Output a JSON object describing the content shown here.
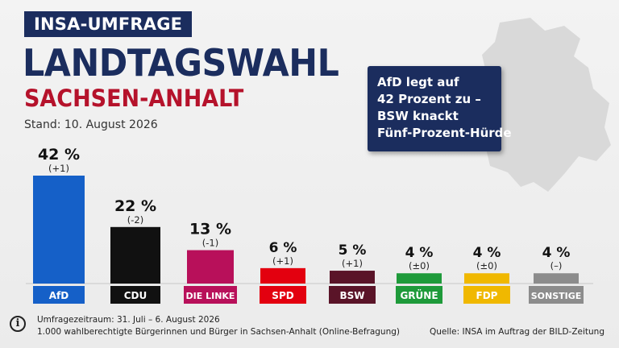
{
  "header": {
    "tag": "INSA-UMFRAGE",
    "title": "LANDTAGSWAHL",
    "subtitle": "SACHSEN-ANHALT",
    "stand": "Stand: 10. August 2026"
  },
  "callout": {
    "lines": [
      "AfD legt auf",
      "42 Prozent zu –",
      "BSW knackt",
      "Fünf-Prozent-Hürde"
    ]
  },
  "colors": {
    "navy": "#1b2d5e",
    "red": "#b5122b"
  },
  "chart_data": {
    "type": "bar",
    "categories": [
      "AfD",
      "CDU",
      "DIE LINKE",
      "SPD",
      "BSW",
      "GRÜNE",
      "FDP",
      "SONSTIGE"
    ],
    "values": [
      42,
      22,
      13,
      6,
      5,
      4,
      4,
      4
    ],
    "value_labels": [
      "42 %",
      "22 %",
      "13 %",
      "6 %",
      "5 %",
      "4 %",
      "4 %",
      "4 %"
    ],
    "change_labels": [
      "(+1)",
      "(-2)",
      "(-1)",
      "(+1)",
      "(+1)",
      "(±0)",
      "(±0)",
      "(–)"
    ],
    "colors": [
      "#1560c8",
      "#111111",
      "#b8105a",
      "#e3000f",
      "#5a1428",
      "#1e9a3a",
      "#f0b800",
      "#8c8c8c"
    ],
    "title": "LANDTAGSWAHL SACHSEN-ANHALT",
    "xlabel": "",
    "ylabel": "",
    "unit": "%",
    "grid": false,
    "legend": "none"
  },
  "footer": {
    "info_icon": "info-icon",
    "zeitraum": "Umfragezeitraum: 31. Juli – 6. August 2026",
    "sample": "1.000 wahlberechtigte Bürgerinnen und Bürger in Sachsen-Anhalt (Online-Befragung)",
    "source": "Quelle: INSA im Auftrag der BILD-Zeitung"
  }
}
